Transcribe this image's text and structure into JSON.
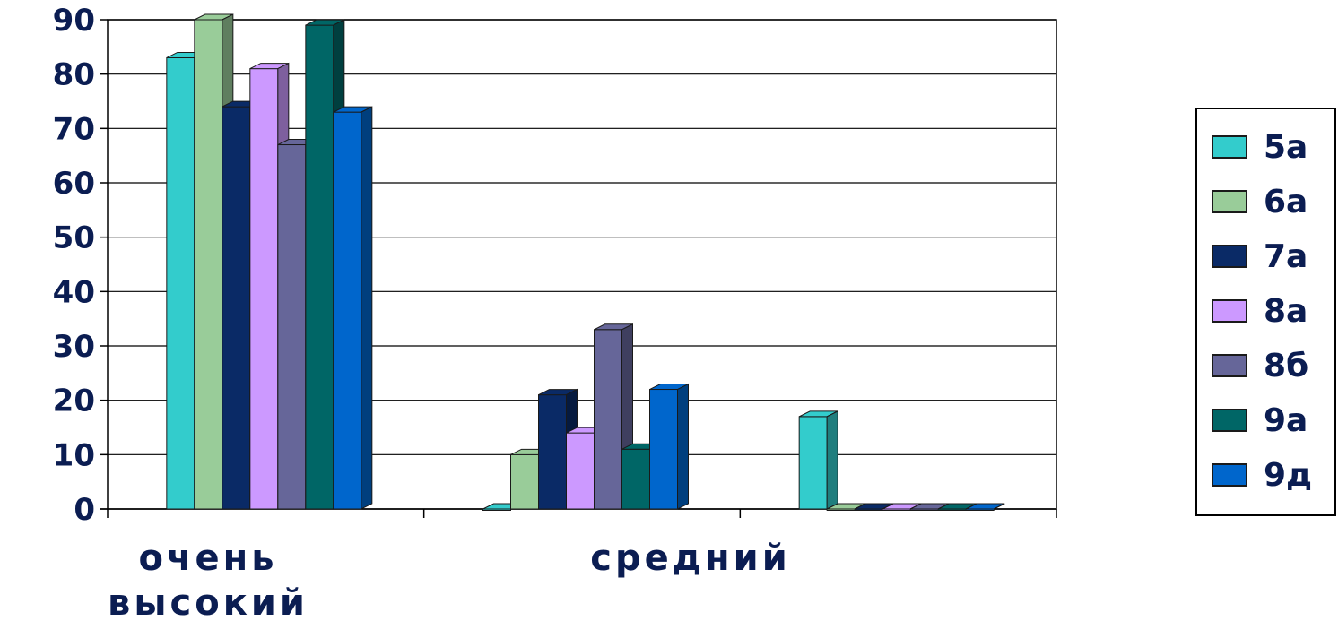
{
  "chart_data": {
    "type": "bar",
    "categories": [
      "очень высокий",
      "средний",
      ""
    ],
    "category_lines": [
      [
        "очень",
        "высокий"
      ],
      [
        "средний"
      ],
      []
    ],
    "yticks": [
      0,
      10,
      20,
      30,
      40,
      50,
      60,
      70,
      80,
      90
    ],
    "ylim": [
      0,
      90
    ],
    "grid": true,
    "legend_position": "right",
    "series": [
      {
        "name": "5а",
        "color": "#33cccc",
        "values": [
          83,
          0,
          17
        ]
      },
      {
        "name": "6а",
        "color": "#99cc99",
        "values": [
          90,
          10,
          0
        ]
      },
      {
        "name": "7а",
        "color": "#0a2a66",
        "values": [
          74,
          21,
          0
        ]
      },
      {
        "name": "8а",
        "color": "#cc99ff",
        "values": [
          81,
          14,
          0
        ]
      },
      {
        "name": "8б",
        "color": "#666699",
        "values": [
          67,
          33,
          0
        ]
      },
      {
        "name": "9а",
        "color": "#006666",
        "values": [
          89,
          11,
          0
        ]
      },
      {
        "name": "9д",
        "color": "#0066cc",
        "values": [
          73,
          22,
          0
        ]
      }
    ],
    "series_values_note_unused": null
  }
}
